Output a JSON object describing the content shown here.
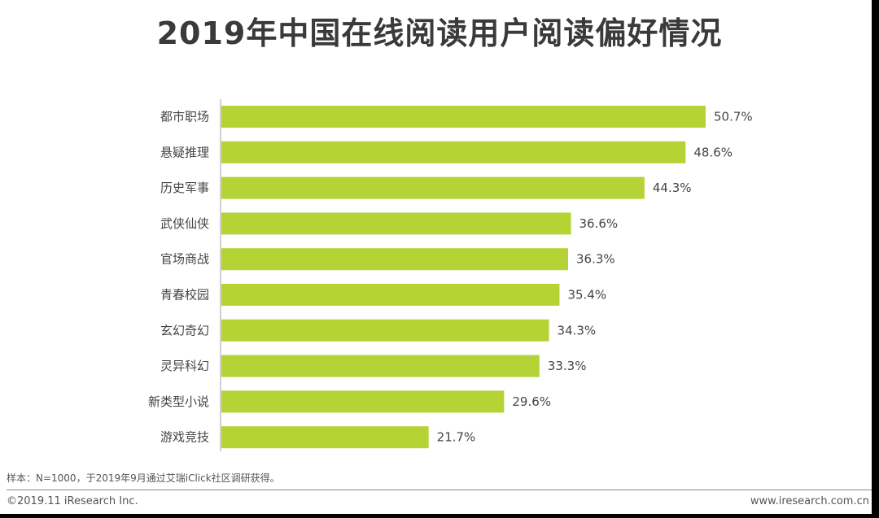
{
  "title": "2019年中国在线阅读用户阅读偏好情况",
  "note": "样本：N=1000，于2019年9月通过艾瑞iClick社区调研获得。",
  "footer": {
    "copyright": "©2019.11 iResearch Inc.",
    "website": "www.iresearch.com.cn"
  },
  "colors": {
    "bar": "#b5d334",
    "axis": "#a0a0a0"
  },
  "chart_data": {
    "type": "bar",
    "orientation": "horizontal",
    "title": "2019年中国在线阅读用户阅读偏好情况",
    "categories": [
      "都市职场",
      "悬疑推理",
      "历史军事",
      "武侠仙侠",
      "官场商战",
      "青春校园",
      "玄幻奇幻",
      "灵异科幻",
      "新类型小说",
      "游戏竞技"
    ],
    "values": [
      50.7,
      48.6,
      44.3,
      36.6,
      36.3,
      35.4,
      34.3,
      33.3,
      29.6,
      21.7
    ],
    "value_labels": [
      "50.7%",
      "48.6%",
      "44.3%",
      "36.6%",
      "36.3%",
      "35.4%",
      "34.3%",
      "33.3%",
      "29.6%",
      "21.7%"
    ],
    "unit": "%",
    "xlim": [
      0,
      50.7
    ],
    "grid": false,
    "legend": "none"
  }
}
